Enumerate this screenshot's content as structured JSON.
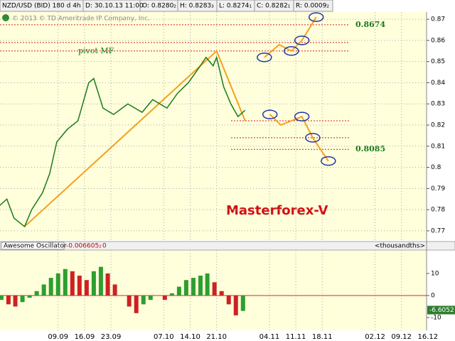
{
  "toolbar": [
    "NZD/USD (BID) 180 d 4h",
    "D: 30.10.13 11:00",
    "O: 0.8280₂",
    "H: 0.8283₃",
    "L: 0.8274₁",
    "C: 0.8282₁",
    "R: 0.0009₂"
  ],
  "chart_data": [
    {
      "type": "line",
      "copyright": "© 2013 © TD Ameritrade IP Company, Inc.",
      "annotations": [
        "pivot MF",
        "Masterforex-V"
      ],
      "x": [
        -2.21,
        -1.94,
        -1.67,
        -1.27,
        -1.0,
        -0.59,
        -0.32,
        -0.05,
        0.35,
        0.75,
        1.16,
        1.35,
        1.7,
        2.1,
        2.64,
        3.18,
        3.58,
        4.12,
        4.52,
        4.93,
        5.33,
        5.6,
        5.87,
        6.0,
        6.27,
        6.54,
        6.81,
        7.08
      ],
      "series": [
        {
          "name": "NZD/USD",
          "color": "#1a7a1a",
          "values": [
            0.782,
            0.785,
            0.776,
            0.772,
            0.78,
            0.788,
            0.797,
            0.812,
            0.818,
            0.822,
            0.84,
            0.842,
            0.828,
            0.825,
            0.83,
            0.826,
            0.832,
            0.828,
            0.835,
            0.84,
            0.847,
            0.852,
            0.848,
            0.852,
            0.838,
            0.83,
            0.824,
            0.827
          ]
        }
      ],
      "trend": {
        "color": "#f5a020",
        "x": [
          -1.27,
          6.0,
          7.08
        ],
        "values": [
          0.772,
          0.855,
          0.822
        ]
      },
      "projections": [
        {
          "color": "#f5a020",
          "x": [
            7.81,
            8.37,
            8.83,
            9.23,
            9.77
          ],
          "values": [
            0.852,
            0.858,
            0.855,
            0.86,
            0.871
          ]
        },
        {
          "color": "#f5a020",
          "x": [
            8.02,
            8.43,
            9.23,
            9.64,
            10.23
          ],
          "values": [
            0.825,
            0.82,
            0.824,
            0.814,
            0.803
          ]
        }
      ],
      "levels": [
        0.8674,
        0.859,
        0.855,
        0.822,
        0.814,
        0.8085
      ],
      "level_labels": [
        "0.8674",
        "0.8085"
      ],
      "level_color": "#d02020",
      "ylim": [
        0.7656,
        0.8734
      ],
      "yticks": [
        0.77,
        0.78,
        0.79,
        0.8,
        0.81,
        0.82,
        0.83,
        0.84,
        0.85,
        0.86,
        0.87
      ],
      "grid": true
    },
    {
      "type": "bar",
      "title": "Awesome Oscillator",
      "readouts": [
        "-0.006605₂",
        "0"
      ],
      "unit_label": "<thousandths>",
      "last_value": -6.6052,
      "up_color": "#2e9e2e",
      "down_color": "#cc2222",
      "x": [
        -2.15,
        -1.88,
        -1.62,
        -1.35,
        -1.08,
        -0.81,
        -0.54,
        -0.27,
        0,
        0.27,
        0.54,
        0.81,
        1.08,
        1.35,
        1.62,
        1.88,
        2.15,
        2.42,
        2.69,
        2.96,
        3.23,
        3.5,
        3.77,
        4.04,
        4.31,
        4.58,
        4.85,
        5.12,
        5.39,
        5.65,
        5.92,
        6.19,
        6.46,
        6.73,
        7.0
      ],
      "values": [
        -2,
        -4,
        -5,
        -3,
        -1,
        2,
        5,
        8,
        10,
        12,
        11,
        9,
        7,
        11,
        13,
        10,
        5,
        0,
        -5,
        -8,
        -4,
        -2,
        0,
        -2,
        1,
        4,
        7,
        8,
        9,
        10,
        6,
        2,
        -4,
        -9,
        -7
      ],
      "xlim": [
        -2.2,
        13.95
      ],
      "xticks": [
        {
          "value": 0,
          "label": "09.09"
        },
        {
          "value": 1,
          "label": "16.09"
        },
        {
          "value": 2,
          "label": "23.09"
        },
        {
          "value": 4,
          "label": "07.10"
        },
        {
          "value": 5,
          "label": "14.10"
        },
        {
          "value": 6,
          "label": "21.10"
        },
        {
          "value": 8,
          "label": "04.11"
        },
        {
          "value": 9,
          "label": "11.11"
        },
        {
          "value": 10,
          "label": "18.11"
        },
        {
          "value": 12,
          "label": "02.12"
        },
        {
          "value": 13,
          "label": "09.12"
        },
        {
          "value": 14,
          "label": "16.12"
        }
      ],
      "ylim": [
        -15.8,
        20.6
      ],
      "yticks": [
        -10,
        0,
        10
      ],
      "zero_color": "#e02020"
    }
  ]
}
